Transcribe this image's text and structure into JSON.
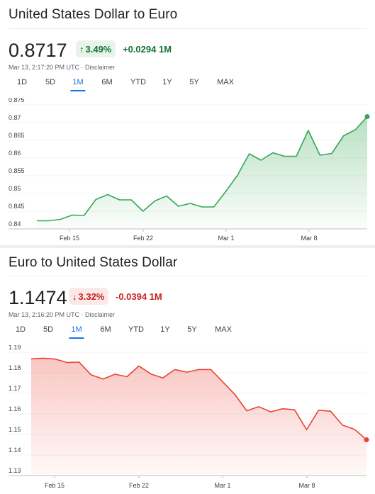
{
  "cards": [
    {
      "title": "United States Dollar to Euro",
      "price": "0.8717",
      "change_pct": "3.49%",
      "change_abs": "+0.0294 1M",
      "direction": "up",
      "timestamp": "Mar 13, 2:17:20 PM UTC · Disclaimer",
      "ranges": [
        "1D",
        "5D",
        "1M",
        "6M",
        "YTD",
        "1Y",
        "5Y",
        "MAX"
      ],
      "active_range": "1M",
      "colors": {
        "line": "#34a853",
        "fill": "#34a853",
        "dot": "#34a853"
      }
    },
    {
      "title": "Euro to United States Dollar",
      "price": "1.1474",
      "change_pct": "3.32%",
      "change_abs": "-0.0394 1M",
      "direction": "down",
      "timestamp": "Mar 13, 2:16:20 PM UTC · Disclaimer",
      "ranges": [
        "1D",
        "5D",
        "1M",
        "6M",
        "YTD",
        "1Y",
        "5Y",
        "MAX"
      ],
      "active_range": "1M",
      "colors": {
        "line": "#ea4335",
        "fill": "#ea4335",
        "dot": "#ea4335"
      }
    }
  ],
  "chart_data": [
    {
      "type": "area",
      "series": [
        {
          "values": [
            0.8423,
            0.8423,
            0.8427,
            0.8439,
            0.8438,
            0.8483,
            0.8497,
            0.8482,
            0.8482,
            0.845,
            0.8479,
            0.8493,
            0.8464,
            0.8472,
            0.8462,
            0.8462,
            0.8505,
            0.8551,
            0.8612,
            0.8594,
            0.8615,
            0.8605,
            0.8605,
            0.8678,
            0.8608,
            0.8613,
            0.8663,
            0.868,
            0.8717
          ]
        }
      ],
      "y_ticks": [
        "0.875",
        "0.87",
        "0.865",
        "0.86",
        "0.855",
        "0.85",
        "0.845",
        "0.84"
      ],
      "x_ticks": [
        "Feb 15",
        "Feb 22",
        "Mar 1",
        "Mar 8"
      ],
      "ylim": [
        0.84,
        0.875
      ]
    },
    {
      "type": "area",
      "series": [
        {
          "values": [
            1.1868,
            1.1871,
            1.1867,
            1.185,
            1.1852,
            1.179,
            1.177,
            1.1793,
            1.1781,
            1.1833,
            1.1794,
            1.1775,
            1.1816,
            1.1803,
            1.1816,
            1.1816,
            1.1756,
            1.1695,
            1.1615,
            1.1635,
            1.161,
            1.1625,
            1.162,
            1.1523,
            1.1618,
            1.1613,
            1.1545,
            1.1525,
            1.1474
          ]
        }
      ],
      "y_ticks": [
        "1.19",
        "1.18",
        "1.17",
        "1.16",
        "1.15",
        "1.14",
        "1.13"
      ],
      "x_ticks": [
        "Feb 15",
        "Feb 22",
        "Mar 1",
        "Mar 8"
      ],
      "ylim": [
        1.13,
        1.19
      ]
    }
  ]
}
